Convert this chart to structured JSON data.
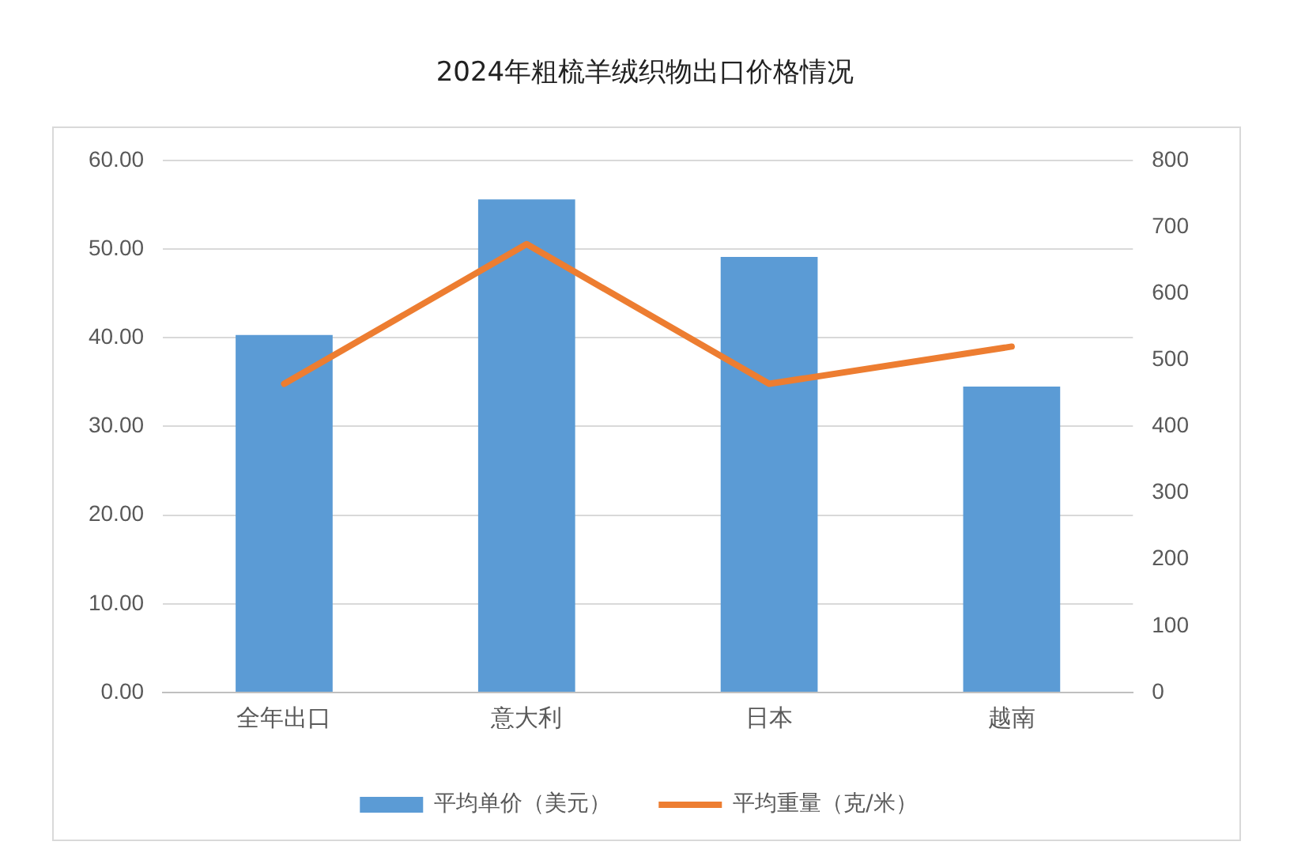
{
  "chart_data": {
    "type": "bar",
    "title": "2024年粗梳羊绒织物出口价格情况",
    "categories": [
      "全年出口",
      "意大利",
      "日本",
      "越南"
    ],
    "series": [
      {
        "name": "平均单价（美元）",
        "type": "bar",
        "color": "#5b9bd5",
        "values": [
          40.3,
          55.6,
          49.1,
          34.5
        ]
      },
      {
        "name": "平均重量（克/米）",
        "type": "line",
        "axis": "y2",
        "color": "#ed7d31",
        "values": [
          464,
          674,
          464,
          520
        ]
      }
    ],
    "ylim": [
      0,
      60
    ],
    "yticks": [
      {
        "value": 0,
        "label": "0.00"
      },
      {
        "value": 10,
        "label": "10.00"
      },
      {
        "value": 20,
        "label": "20.00"
      },
      {
        "value": 30,
        "label": "30.00"
      },
      {
        "value": 40,
        "label": "40.00"
      },
      {
        "value": 50,
        "label": "50.00"
      },
      {
        "value": 60,
        "label": "60.00"
      }
    ],
    "y2lim": [
      0,
      800
    ],
    "y2ticks": [
      0,
      100,
      200,
      300,
      400,
      500,
      600,
      700,
      800
    ],
    "grid": "y",
    "legend": "bottom",
    "marker": "none"
  }
}
